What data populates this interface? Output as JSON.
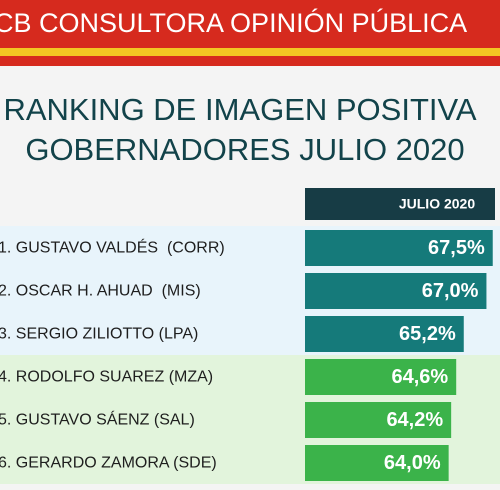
{
  "chart_data": {
    "type": "bar",
    "orientation": "horizontal",
    "banner": "CB CONSULTORA OPINIÓN PÚBLICA",
    "title": "RANKING DE IMAGEN POSITIVA",
    "subtitle": "GOBERNADORES JULIO 2020",
    "column_header": "JULIO 2020",
    "categories": [
      "1. GUSTAVO VALDÉS  (CORR)",
      "2. OSCAR H. AHUAD  (MIS)",
      "3. SERGIO ZILIOTTO (LPA)",
      "4. RODOLFO SUAREZ (MZA)",
      "5. GUSTAVO SÁENZ (SAL)",
      "6. GERARDO ZAMORA (SDE)"
    ],
    "values": [
      67.5,
      67.0,
      65.2,
      64.6,
      64.2,
      64.0
    ],
    "value_labels": [
      "67,5%",
      "67,0%",
      "65,2%",
      "64,6%",
      "64,2%",
      "64,0%"
    ],
    "colors": [
      "#157a7a",
      "#157a7a",
      "#157a7a",
      "#3bb34a",
      "#3bb34a",
      "#3bb34a"
    ],
    "row_colors": [
      "#e8f4fb",
      "#e8f4fb",
      "#e8f4fb",
      "#e2f4dc",
      "#e2f4dc",
      "#e2f4dc"
    ]
  }
}
